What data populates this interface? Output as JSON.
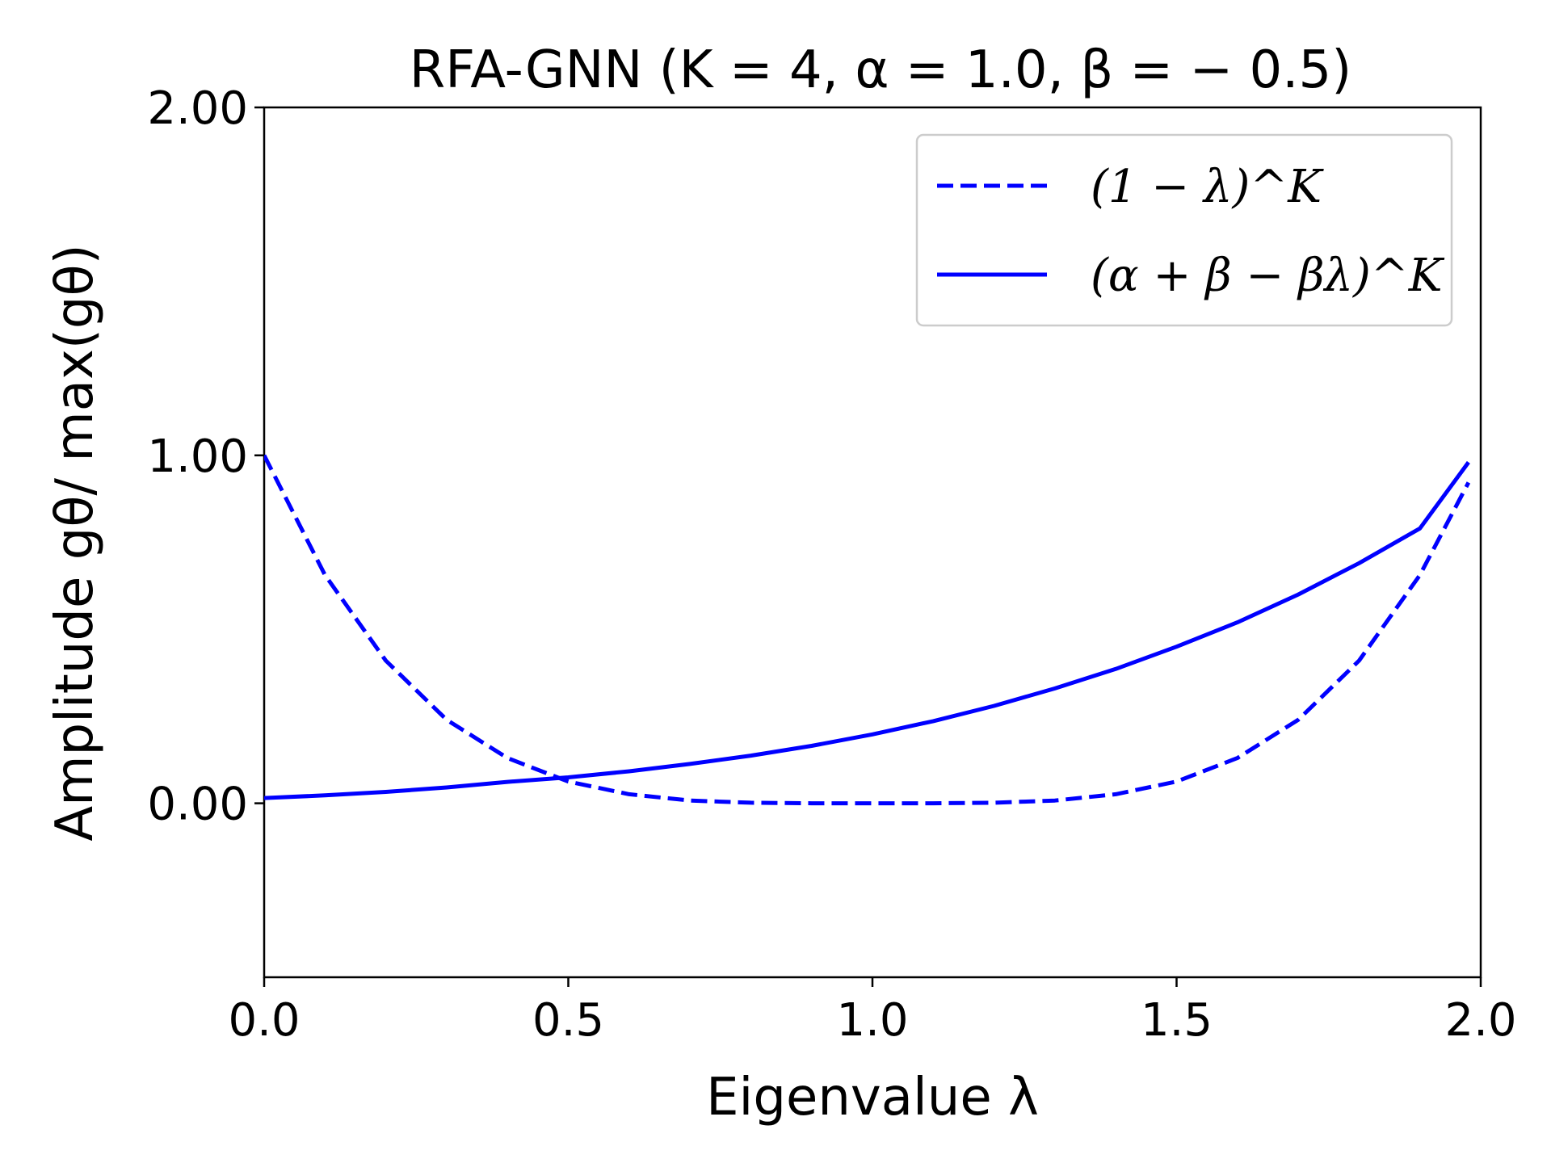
{
  "chart_data": {
    "type": "line",
    "title": "RFA-GNN (K = 4, α = 1.0, β = − 0.5)",
    "xlabel": "Eigenvalue λ",
    "ylabel": "Amplitude gθ/ max(gθ)",
    "xlim": [
      0.0,
      2.0
    ],
    "ylim": [
      -0.5,
      2.0
    ],
    "xticks": [
      0.0,
      0.5,
      1.0,
      1.5,
      2.0
    ],
    "xtick_labels": [
      "0.0",
      "0.5",
      "1.0",
      "1.5",
      "2.0"
    ],
    "yticks": [
      0.0,
      1.0,
      2.0
    ],
    "ytick_labels": [
      "0.00",
      "1.00",
      "2.00"
    ],
    "grid": false,
    "legend_position": "top-right",
    "series": [
      {
        "name": "(1 − λ)^K",
        "style": "dashed",
        "color": "#0000ff",
        "x": [
          0.0,
          0.1,
          0.2,
          0.3,
          0.4,
          0.5,
          0.6,
          0.7,
          0.8,
          0.9,
          1.0,
          1.1,
          1.2,
          1.3,
          1.4,
          1.5,
          1.6,
          1.7,
          1.8,
          1.9,
          1.98
        ],
        "y": [
          1.0,
          0.656,
          0.41,
          0.24,
          0.13,
          0.0625,
          0.026,
          0.008,
          0.0016,
          0.0001,
          0.0,
          0.0001,
          0.0016,
          0.008,
          0.026,
          0.0625,
          0.13,
          0.24,
          0.41,
          0.656,
          0.922
        ]
      },
      {
        "name": "(α + β − βλ)^K",
        "style": "solid",
        "color": "#0000ff",
        "x": [
          0.0,
          0.1,
          0.2,
          0.3,
          0.4,
          0.5,
          0.6,
          0.7,
          0.8,
          0.9,
          1.0,
          1.1,
          1.2,
          1.3,
          1.4,
          1.5,
          1.6,
          1.7,
          1.8,
          1.9,
          1.98
        ],
        "y": [
          0.0152,
          0.0228,
          0.0328,
          0.0455,
          0.0615,
          0.0744,
          0.092,
          0.113,
          0.137,
          0.165,
          0.198,
          0.236,
          0.28,
          0.33,
          0.386,
          0.45,
          0.52,
          0.6,
          0.69,
          0.79,
          0.98
        ]
      }
    ]
  }
}
